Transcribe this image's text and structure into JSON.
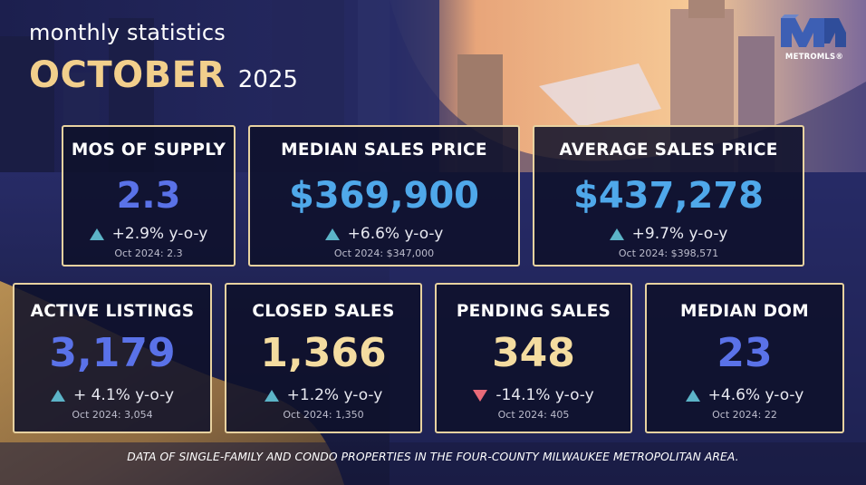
{
  "header": {
    "subtitle": "monthly statistics",
    "month": "OCTOBER",
    "year": "2025"
  },
  "logo": {
    "text": "METROMLS®",
    "icon": "metromls-logo"
  },
  "colors": {
    "gold": "#f2cf8c",
    "blue_value": "#5a72e8",
    "light_blue_value": "#4fa8ea",
    "cream_value": "#f4dca0",
    "card_border": "#e8d2a0",
    "up_arrow": "#5cb4c8",
    "down_arrow": "#e86a78"
  },
  "cards": [
    {
      "label": "MOS OF SUPPLY",
      "value": "2.3",
      "change": "+2.9% y-o-y",
      "trend": "up",
      "prior": "Oct 2024: 2.3",
      "value_color": "#5a72e8"
    },
    {
      "label": "MEDIAN SALES PRICE",
      "value": "$369,900",
      "change": "+6.6% y-o-y",
      "trend": "up",
      "prior": "Oct 2024: $347,000",
      "value_color": "#4fa8ea"
    },
    {
      "label": "AVERAGE SALES PRICE",
      "value": "$437,278",
      "change": "+9.7% y-o-y",
      "trend": "up",
      "prior": "Oct 2024: $398,571",
      "value_color": "#4fa8ea"
    },
    {
      "label": "ACTIVE LISTINGS",
      "value": "3,179",
      "change": "+ 4.1% y-o-y",
      "trend": "up",
      "prior": "Oct 2024: 3,054",
      "value_color": "#5a72e8"
    },
    {
      "label": "CLOSED SALES",
      "value": "1,366",
      "change": "+1.2% y-o-y",
      "trend": "up",
      "prior": "Oct 2024: 1,350",
      "value_color": "#f4dca0"
    },
    {
      "label": "PENDING SALES",
      "value": "348",
      "change": "-14.1% y-o-y",
      "trend": "down",
      "prior": "Oct 2024: 405",
      "value_color": "#f4dca0"
    },
    {
      "label": "MEDIAN DOM",
      "value": "23",
      "change": "+4.6% y-o-y",
      "trend": "up",
      "prior": "Oct 2024: 22",
      "value_color": "#5a72e8"
    }
  ],
  "footer": "DATA OF SINGLE-FAMILY AND CONDO PROPERTIES IN THE FOUR-COUNTY MILWAUKEE METROPOLITAN AREA."
}
